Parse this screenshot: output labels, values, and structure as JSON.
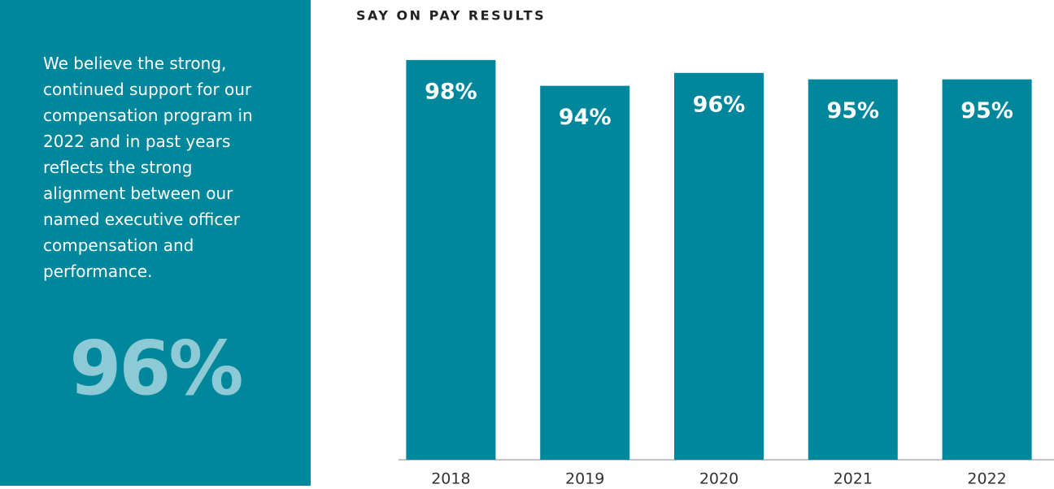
{
  "sidebar": {
    "text": "We believe the strong, continued support for our compensation program in 2022 and in past years reflects the strong alignment between our named executive officer compensation and performance.",
    "highlight": "96%"
  },
  "chart_data": {
    "type": "bar",
    "title": "SAY ON PAY RESULTS",
    "categories": [
      "2018",
      "2019",
      "2020",
      "2021",
      "2022"
    ],
    "values": [
      98,
      94,
      96,
      95,
      95
    ],
    "value_labels": [
      "98%",
      "94%",
      "96%",
      "95%",
      "95%"
    ],
    "color": "#00879c",
    "ylim": [
      36,
      100
    ]
  }
}
